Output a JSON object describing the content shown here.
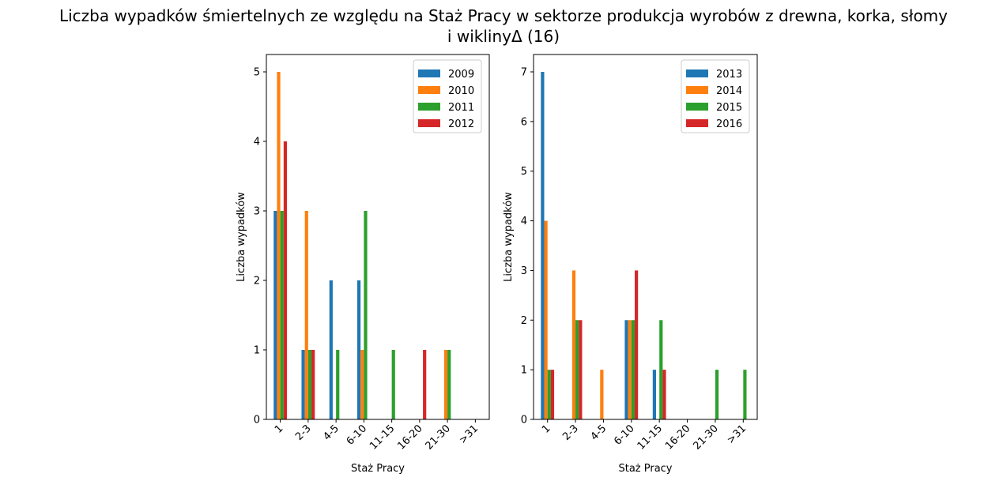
{
  "title_line1": "Liczba wypadków śmiertelnych ze względu na Staż Pracy w sektorze produkcja wyrobów z drewna, korka, słomy",
  "title_line2": "i wiklinyΔ (16)",
  "chart_data": [
    {
      "type": "bar",
      "categories": [
        "1",
        "2-3",
        "4-5",
        "6-10",
        "11-15",
        "16-20",
        "21-30",
        ">31"
      ],
      "xlabel": "Staż Pracy",
      "ylabel": "Liczba wypadków",
      "ylim": [
        0,
        5.25
      ],
      "yticks": [
        0,
        1,
        2,
        3,
        4,
        5
      ],
      "legend_position": "top-right",
      "series": [
        {
          "name": "2009",
          "color": "#1f77b4",
          "values": [
            3,
            1,
            2,
            2,
            0,
            0,
            0,
            0
          ]
        },
        {
          "name": "2010",
          "color": "#ff7f0e",
          "values": [
            5,
            3,
            0,
            1,
            0,
            0,
            1,
            0
          ]
        },
        {
          "name": "2011",
          "color": "#2ca02c",
          "values": [
            3,
            1,
            1,
            3,
            1,
            0,
            1,
            0
          ]
        },
        {
          "name": "2012",
          "color": "#d62728",
          "values": [
            4,
            1,
            0,
            0,
            0,
            1,
            0,
            0
          ]
        }
      ]
    },
    {
      "type": "bar",
      "categories": [
        "1",
        "2-3",
        "4-5",
        "6-10",
        "11-15",
        "16-20",
        "21-30",
        ">31"
      ],
      "xlabel": "Staż Pracy",
      "ylabel": "Liczba wypadków",
      "ylim": [
        0,
        7.35
      ],
      "yticks": [
        0,
        1,
        2,
        3,
        4,
        5,
        6,
        7
      ],
      "legend_position": "top-right",
      "series": [
        {
          "name": "2013",
          "color": "#1f77b4",
          "values": [
            7,
            0,
            0,
            2,
            1,
            0,
            0,
            0
          ]
        },
        {
          "name": "2014",
          "color": "#ff7f0e",
          "values": [
            4,
            3,
            1,
            2,
            0,
            0,
            0,
            0
          ]
        },
        {
          "name": "2015",
          "color": "#2ca02c",
          "values": [
            1,
            2,
            0,
            2,
            2,
            0,
            1,
            1
          ]
        },
        {
          "name": "2016",
          "color": "#d62728",
          "values": [
            1,
            2,
            0,
            3,
            1,
            0,
            0,
            0
          ]
        }
      ]
    }
  ]
}
